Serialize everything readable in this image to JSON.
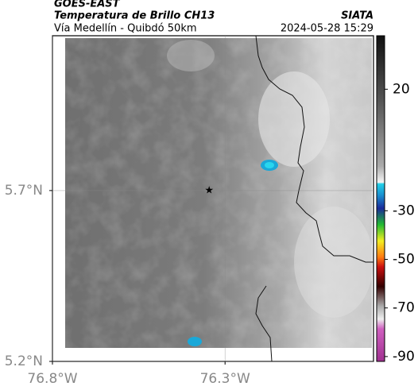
{
  "chart_data": {
    "type": "map",
    "title": "GOES-EAST",
    "subtitle": "Temperatura de Brillo CH13",
    "source": "SIATA",
    "region": "Vía Medellín - Quibdó 50km",
    "timestamp": "2024-05-28 15:29",
    "xlim": [
      -76.8,
      -75.87
    ],
    "ylim": [
      5.2,
      6.153
    ],
    "xticks": [
      {
        "value": -76.8,
        "label": "76.8°W"
      },
      {
        "value": -76.3,
        "label": "76.3°W"
      }
    ],
    "yticks": [
      {
        "value": 5.2,
        "label": "5.2°N"
      },
      {
        "value": 5.7,
        "label": "5.7°N"
      }
    ],
    "grid": true,
    "points": [
      {
        "x": -76.346,
        "y": 5.7
      }
    ],
    "colorbar": {
      "lim": [
        42,
        -92
      ],
      "ticks": [
        20,
        -30,
        -50,
        -70,
        -90
      ]
    }
  }
}
